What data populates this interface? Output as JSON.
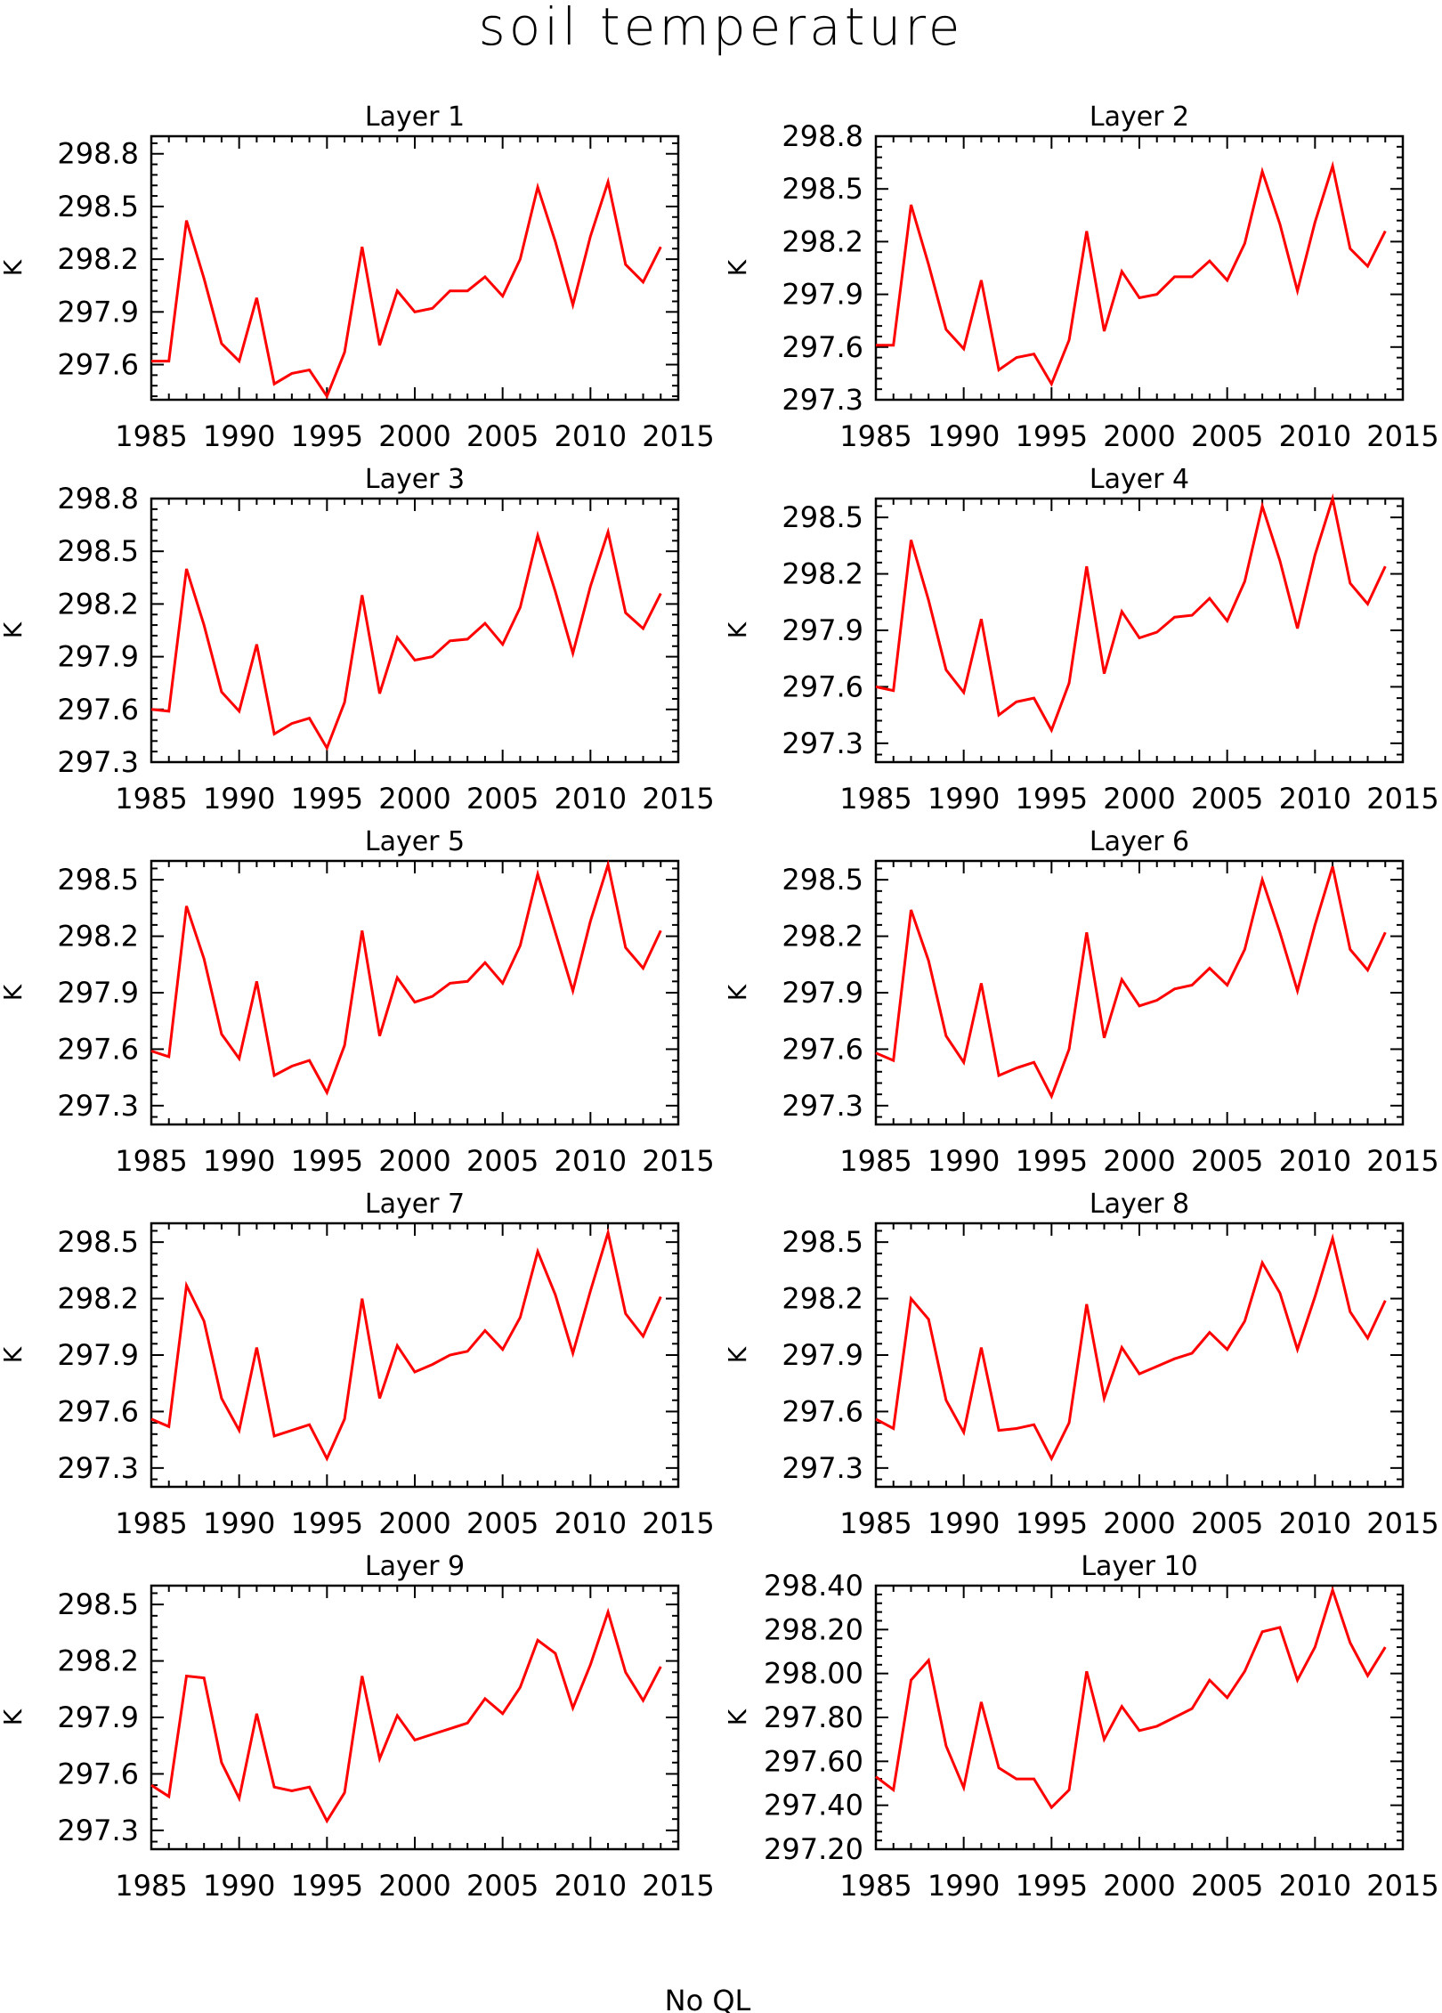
{
  "figure": {
    "title": "soil temperature",
    "footer": "No QL"
  },
  "chart_data": [
    {
      "type": "line",
      "title": "Layer 1",
      "ylabel": "K",
      "xlim": [
        1985,
        2015
      ],
      "ylim": [
        297.4,
        298.9
      ],
      "yticks": [
        297.6,
        297.9,
        298.2,
        298.5,
        298.8
      ],
      "ytick_labels": [
        "297.6",
        "297.9",
        "298.2",
        "298.5",
        "298.8"
      ],
      "xticks": [
        1985,
        1990,
        1995,
        2000,
        2005,
        2010,
        2015
      ],
      "xtick_labels": [
        "1985",
        "1990",
        "1995",
        "2000",
        "2005",
        "2010",
        "2015"
      ],
      "color": "#ff0000",
      "x": [
        1985,
        1986,
        1987,
        1988,
        1989,
        1990,
        1991,
        1992,
        1993,
        1994,
        1995,
        1996,
        1997,
        1998,
        1999,
        2000,
        2001,
        2002,
        2003,
        2004,
        2005,
        2006,
        2007,
        2008,
        2009,
        2010,
        2011,
        2012,
        2013,
        2014
      ],
      "y": [
        297.62,
        297.62,
        298.42,
        298.09,
        297.72,
        297.62,
        297.98,
        297.49,
        297.55,
        297.57,
        297.42,
        297.67,
        298.27,
        297.71,
        298.02,
        297.9,
        297.92,
        298.02,
        298.02,
        298.1,
        297.99,
        298.2,
        298.61,
        298.3,
        297.94,
        298.33,
        298.64,
        298.17,
        298.07,
        298.27
      ]
    },
    {
      "type": "line",
      "title": "Layer 2",
      "ylabel": "K",
      "xlim": [
        1985,
        2015
      ],
      "ylim": [
        297.3,
        298.8
      ],
      "yticks": [
        297.3,
        297.6,
        297.9,
        298.2,
        298.5,
        298.8
      ],
      "ytick_labels": [
        "297.3",
        "297.6",
        "297.9",
        "298.2",
        "298.5",
        "298.8"
      ],
      "xticks": [
        1985,
        1990,
        1995,
        2000,
        2005,
        2010,
        2015
      ],
      "xtick_labels": [
        "1985",
        "1990",
        "1995",
        "2000",
        "2005",
        "2010",
        "2015"
      ],
      "color": "#ff0000",
      "x": [
        1985,
        1986,
        1987,
        1988,
        1989,
        1990,
        1991,
        1992,
        1993,
        1994,
        1995,
        1996,
        1997,
        1998,
        1999,
        2000,
        2001,
        2002,
        2003,
        2004,
        2005,
        2006,
        2007,
        2008,
        2009,
        2010,
        2011,
        2012,
        2013,
        2014
      ],
      "y": [
        297.61,
        297.61,
        298.41,
        298.07,
        297.7,
        297.59,
        297.98,
        297.47,
        297.54,
        297.56,
        297.39,
        297.64,
        298.26,
        297.69,
        298.03,
        297.88,
        297.9,
        298.0,
        298.0,
        298.09,
        297.98,
        298.19,
        298.6,
        298.3,
        297.92,
        298.31,
        298.63,
        298.16,
        298.06,
        298.26
      ]
    },
    {
      "type": "line",
      "title": "Layer 3",
      "ylabel": "K",
      "xlim": [
        1985,
        2015
      ],
      "ylim": [
        297.3,
        298.8
      ],
      "yticks": [
        297.3,
        297.6,
        297.9,
        298.2,
        298.5,
        298.8
      ],
      "ytick_labels": [
        "297.3",
        "297.6",
        "297.9",
        "298.2",
        "298.5",
        "298.8"
      ],
      "xticks": [
        1985,
        1990,
        1995,
        2000,
        2005,
        2010,
        2015
      ],
      "xtick_labels": [
        "1985",
        "1990",
        "1995",
        "2000",
        "2005",
        "2010",
        "2015"
      ],
      "color": "#ff0000",
      "x": [
        1985,
        1986,
        1987,
        1988,
        1989,
        1990,
        1991,
        1992,
        1993,
        1994,
        1995,
        1996,
        1997,
        1998,
        1999,
        2000,
        2001,
        2002,
        2003,
        2004,
        2005,
        2006,
        2007,
        2008,
        2009,
        2010,
        2011,
        2012,
        2013,
        2014
      ],
      "y": [
        297.6,
        297.59,
        298.4,
        298.08,
        297.7,
        297.59,
        297.97,
        297.46,
        297.52,
        297.55,
        297.38,
        297.64,
        298.25,
        297.69,
        298.01,
        297.88,
        297.9,
        297.99,
        298.0,
        298.09,
        297.97,
        298.18,
        298.59,
        298.27,
        297.92,
        298.3,
        298.61,
        298.15,
        298.06,
        298.26
      ]
    },
    {
      "type": "line",
      "title": "Layer 4",
      "ylabel": "K",
      "xlim": [
        1985,
        2015
      ],
      "ylim": [
        297.2,
        298.6
      ],
      "yticks": [
        297.3,
        297.6,
        297.9,
        298.2,
        298.5
      ],
      "ytick_labels": [
        "297.3",
        "297.6",
        "297.9",
        "298.2",
        "298.5"
      ],
      "xticks": [
        1985,
        1990,
        1995,
        2000,
        2005,
        2010,
        2015
      ],
      "xtick_labels": [
        "1985",
        "1990",
        "1995",
        "2000",
        "2005",
        "2010",
        "2015"
      ],
      "color": "#ff0000",
      "x": [
        1985,
        1986,
        1987,
        1988,
        1989,
        1990,
        1991,
        1992,
        1993,
        1994,
        1995,
        1996,
        1997,
        1998,
        1999,
        2000,
        2001,
        2002,
        2003,
        2004,
        2005,
        2006,
        2007,
        2008,
        2009,
        2010,
        2011,
        2012,
        2013,
        2014
      ],
      "y": [
        297.6,
        297.58,
        298.38,
        298.06,
        297.69,
        297.57,
        297.96,
        297.45,
        297.52,
        297.54,
        297.37,
        297.62,
        298.24,
        297.67,
        298.0,
        297.86,
        297.89,
        297.97,
        297.98,
        298.07,
        297.95,
        298.16,
        298.56,
        298.27,
        297.91,
        298.3,
        298.6,
        298.15,
        298.04,
        298.24
      ]
    },
    {
      "type": "line",
      "title": "Layer 5",
      "ylabel": "K",
      "xlim": [
        1985,
        2015
      ],
      "ylim": [
        297.2,
        298.6
      ],
      "yticks": [
        297.3,
        297.6,
        297.9,
        298.2,
        298.5
      ],
      "ytick_labels": [
        "297.3",
        "297.6",
        "297.9",
        "298.2",
        "298.5"
      ],
      "xticks": [
        1985,
        1990,
        1995,
        2000,
        2005,
        2010,
        2015
      ],
      "xtick_labels": [
        "1985",
        "1990",
        "1995",
        "2000",
        "2005",
        "2010",
        "2015"
      ],
      "color": "#ff0000",
      "x": [
        1985,
        1986,
        1987,
        1988,
        1989,
        1990,
        1991,
        1992,
        1993,
        1994,
        1995,
        1996,
        1997,
        1998,
        1999,
        2000,
        2001,
        2002,
        2003,
        2004,
        2005,
        2006,
        2007,
        2008,
        2009,
        2010,
        2011,
        2012,
        2013,
        2014
      ],
      "y": [
        297.59,
        297.56,
        298.36,
        298.08,
        297.68,
        297.55,
        297.96,
        297.46,
        297.51,
        297.54,
        297.37,
        297.62,
        298.23,
        297.67,
        297.98,
        297.85,
        297.88,
        297.95,
        297.96,
        298.06,
        297.95,
        298.15,
        298.53,
        298.22,
        297.91,
        298.28,
        298.58,
        298.14,
        298.03,
        298.23
      ]
    },
    {
      "type": "line",
      "title": "Layer 6",
      "ylabel": "K",
      "xlim": [
        1985,
        2015
      ],
      "ylim": [
        297.2,
        298.6
      ],
      "yticks": [
        297.3,
        297.6,
        297.9,
        298.2,
        298.5
      ],
      "ytick_labels": [
        "297.3",
        "297.6",
        "297.9",
        "298.2",
        "298.5"
      ],
      "xticks": [
        1985,
        1990,
        1995,
        2000,
        2005,
        2010,
        2015
      ],
      "xtick_labels": [
        "1985",
        "1990",
        "1995",
        "2000",
        "2005",
        "2010",
        "2015"
      ],
      "color": "#ff0000",
      "x": [
        1985,
        1986,
        1987,
        1988,
        1989,
        1990,
        1991,
        1992,
        1993,
        1994,
        1995,
        1996,
        1997,
        1998,
        1999,
        2000,
        2001,
        2002,
        2003,
        2004,
        2005,
        2006,
        2007,
        2008,
        2009,
        2010,
        2011,
        2012,
        2013,
        2014
      ],
      "y": [
        297.58,
        297.54,
        298.34,
        298.07,
        297.67,
        297.53,
        297.95,
        297.46,
        297.5,
        297.53,
        297.35,
        297.6,
        298.22,
        297.66,
        297.97,
        297.83,
        297.86,
        297.92,
        297.94,
        298.03,
        297.94,
        298.13,
        298.5,
        298.22,
        297.91,
        298.26,
        298.57,
        298.13,
        298.02,
        298.22
      ]
    },
    {
      "type": "line",
      "title": "Layer 7",
      "ylabel": "K",
      "xlim": [
        1985,
        2015
      ],
      "ylim": [
        297.2,
        298.6
      ],
      "yticks": [
        297.3,
        297.6,
        297.9,
        298.2,
        298.5
      ],
      "ytick_labels": [
        "297.3",
        "297.6",
        "297.9",
        "298.2",
        "298.5"
      ],
      "xticks": [
        1985,
        1990,
        1995,
        2000,
        2005,
        2010,
        2015
      ],
      "xtick_labels": [
        "1985",
        "1990",
        "1995",
        "2000",
        "2005",
        "2010",
        "2015"
      ],
      "color": "#ff0000",
      "x": [
        1985,
        1986,
        1987,
        1988,
        1989,
        1990,
        1991,
        1992,
        1993,
        1994,
        1995,
        1996,
        1997,
        1998,
        1999,
        2000,
        2001,
        2002,
        2003,
        2004,
        2005,
        2006,
        2007,
        2008,
        2009,
        2010,
        2011,
        2012,
        2013,
        2014
      ],
      "y": [
        297.56,
        297.52,
        298.27,
        298.08,
        297.67,
        297.5,
        297.94,
        297.47,
        297.5,
        297.53,
        297.35,
        297.56,
        298.2,
        297.67,
        297.95,
        297.81,
        297.85,
        297.9,
        297.92,
        298.03,
        297.93,
        298.1,
        298.45,
        298.22,
        297.91,
        298.24,
        298.55,
        298.12,
        298.0,
        298.21
      ]
    },
    {
      "type": "line",
      "title": "Layer 8",
      "ylabel": "K",
      "xlim": [
        1985,
        2015
      ],
      "ylim": [
        297.2,
        298.6
      ],
      "yticks": [
        297.3,
        297.6,
        297.9,
        298.2,
        298.5
      ],
      "ytick_labels": [
        "297.3",
        "297.6",
        "297.9",
        "298.2",
        "298.5"
      ],
      "xticks": [
        1985,
        1990,
        1995,
        2000,
        2005,
        2010,
        2015
      ],
      "xtick_labels": [
        "1985",
        "1990",
        "1995",
        "2000",
        "2005",
        "2010",
        "2015"
      ],
      "color": "#ff0000",
      "x": [
        1985,
        1986,
        1987,
        1988,
        1989,
        1990,
        1991,
        1992,
        1993,
        1994,
        1995,
        1996,
        1997,
        1998,
        1999,
        2000,
        2001,
        2002,
        2003,
        2004,
        2005,
        2006,
        2007,
        2008,
        2009,
        2010,
        2011,
        2012,
        2013,
        2014
      ],
      "y": [
        297.56,
        297.51,
        298.2,
        298.09,
        297.66,
        297.49,
        297.94,
        297.5,
        297.51,
        297.53,
        297.35,
        297.54,
        298.17,
        297.67,
        297.94,
        297.8,
        297.84,
        297.88,
        297.91,
        298.02,
        297.93,
        298.08,
        298.39,
        298.23,
        297.93,
        298.21,
        298.52,
        298.13,
        297.99,
        298.19
      ]
    },
    {
      "type": "line",
      "title": "Layer 9",
      "ylabel": "K",
      "xlim": [
        1985,
        2015
      ],
      "ylim": [
        297.2,
        298.6
      ],
      "yticks": [
        297.3,
        297.6,
        297.9,
        298.2,
        298.5
      ],
      "ytick_labels": [
        "297.3",
        "297.6",
        "297.9",
        "298.2",
        "298.5"
      ],
      "xticks": [
        1985,
        1990,
        1995,
        2000,
        2005,
        2010,
        2015
      ],
      "xtick_labels": [
        "1985",
        "1990",
        "1995",
        "2000",
        "2005",
        "2010",
        "2015"
      ],
      "color": "#ff0000",
      "x": [
        1985,
        1986,
        1987,
        1988,
        1989,
        1990,
        1991,
        1992,
        1993,
        1994,
        1995,
        1996,
        1997,
        1998,
        1999,
        2000,
        2001,
        2002,
        2003,
        2004,
        2005,
        2006,
        2007,
        2008,
        2009,
        2010,
        2011,
        2012,
        2013,
        2014
      ],
      "y": [
        297.54,
        297.48,
        298.12,
        298.11,
        297.66,
        297.47,
        297.92,
        297.53,
        297.51,
        297.53,
        297.35,
        297.5,
        298.12,
        297.68,
        297.91,
        297.78,
        297.81,
        297.84,
        297.87,
        298.0,
        297.92,
        298.06,
        298.31,
        298.24,
        297.95,
        298.18,
        298.46,
        298.14,
        297.99,
        298.17
      ]
    },
    {
      "type": "line",
      "title": "Layer 10",
      "ylabel": "K",
      "xlim": [
        1985,
        2015
      ],
      "ylim": [
        297.2,
        298.4
      ],
      "yticks": [
        297.2,
        297.4,
        297.6,
        297.8,
        298.0,
        298.2,
        298.4
      ],
      "ytick_labels": [
        "297.20",
        "297.40",
        "297.60",
        "297.80",
        "298.00",
        "298.20",
        "298.40"
      ],
      "xticks": [
        1985,
        1990,
        1995,
        2000,
        2005,
        2010,
        2015
      ],
      "xtick_labels": [
        "1985",
        "1990",
        "1995",
        "2000",
        "2005",
        "2010",
        "2015"
      ],
      "color": "#ff0000",
      "x": [
        1985,
        1986,
        1987,
        1988,
        1989,
        1990,
        1991,
        1992,
        1993,
        1994,
        1995,
        1996,
        1997,
        1998,
        1999,
        2000,
        2001,
        2002,
        2003,
        2004,
        2005,
        2006,
        2007,
        2008,
        2009,
        2010,
        2011,
        2012,
        2013,
        2014
      ],
      "y": [
        297.53,
        297.47,
        297.97,
        298.06,
        297.67,
        297.48,
        297.87,
        297.57,
        297.52,
        297.52,
        297.39,
        297.47,
        298.01,
        297.7,
        297.85,
        297.74,
        297.76,
        297.8,
        297.84,
        297.97,
        297.89,
        298.01,
        298.19,
        298.21,
        297.97,
        298.12,
        298.38,
        298.14,
        297.99,
        298.12
      ]
    }
  ]
}
